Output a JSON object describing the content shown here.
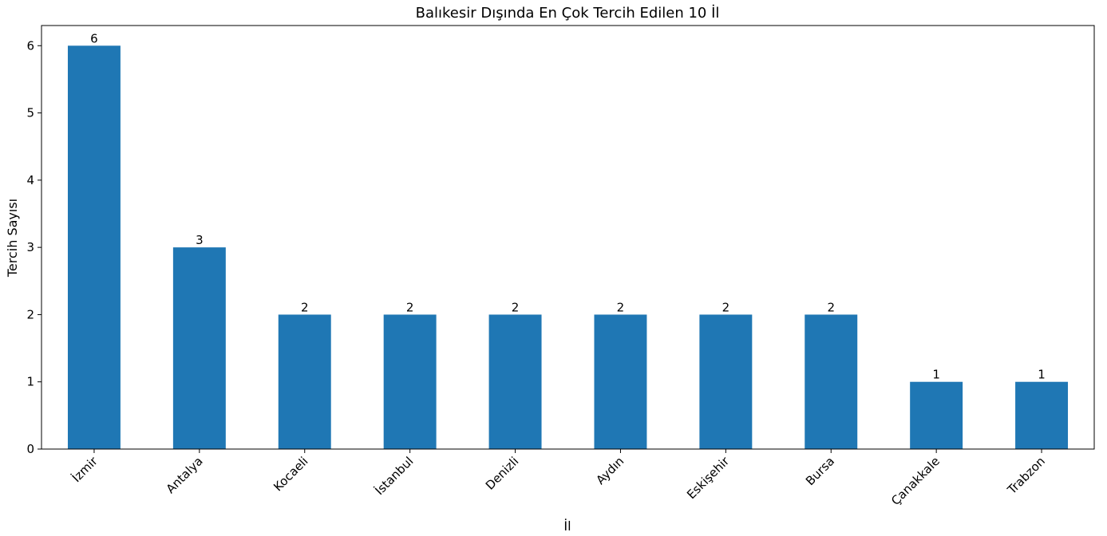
{
  "chart_data": {
    "type": "bar",
    "title": "Balıkesir Dışında En Çok Tercih Edilen 10 İl",
    "xlabel": "İl",
    "ylabel": "Tercih Sayısı",
    "categories": [
      "İzmir",
      "Antalya",
      "Kocaeli",
      "İstanbul",
      "Denizli",
      "Aydın",
      "Eskişehir",
      "Bursa",
      "Çanakkale",
      "Trabzon"
    ],
    "values": [
      6,
      3,
      2,
      2,
      2,
      2,
      2,
      2,
      1,
      1
    ],
    "ylim": [
      0,
      6.3
    ],
    "yticks": [
      0,
      1,
      2,
      3,
      4,
      5,
      6
    ],
    "bar_color": "#1f77b4",
    "grid": false,
    "legend": "none"
  }
}
